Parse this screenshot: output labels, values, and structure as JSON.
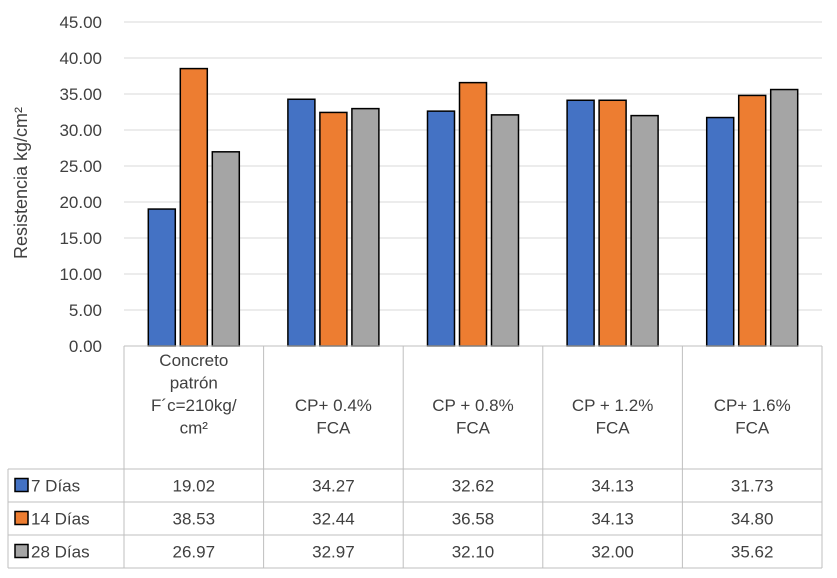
{
  "chart_data": {
    "type": "bar",
    "title": "",
    "xlabel": "",
    "ylabel": "Resistencia kg/cm²",
    "ylim": [
      0,
      45
    ],
    "yticks": [
      "0.00",
      "5.00",
      "10.00",
      "15.00",
      "20.00",
      "25.00",
      "30.00",
      "35.00",
      "40.00",
      "45.00"
    ],
    "grid": true,
    "legend": "data-table",
    "categories": [
      [
        "Concreto",
        "patrón",
        "F´c=210kg/",
        "cm²"
      ],
      [
        "CP+ 0.4%",
        "FCA"
      ],
      [
        "CP + 0.8%",
        "FCA"
      ],
      [
        "CP + 1.2%",
        "FCA"
      ],
      [
        "CP+ 1.6%",
        "FCA"
      ]
    ],
    "series": [
      {
        "name": "7 Días",
        "color": "#4472C4",
        "values": [
          19.02,
          34.27,
          32.62,
          34.13,
          31.73
        ],
        "labels": [
          "19.02",
          "34.27",
          "32.62",
          "34.13",
          "31.73"
        ]
      },
      {
        "name": "14 Días",
        "color": "#ED7D31",
        "values": [
          38.53,
          32.44,
          36.58,
          34.13,
          34.8
        ],
        "labels": [
          "38.53",
          "32.44",
          "36.58",
          "34.13",
          "34.80"
        ]
      },
      {
        "name": "28 Días",
        "color": "#A5A5A5",
        "values": [
          26.97,
          32.97,
          32.1,
          32.0,
          35.62
        ],
        "labels": [
          "26.97",
          "32.97",
          "32.10",
          "32.00",
          "35.62"
        ]
      }
    ]
  }
}
